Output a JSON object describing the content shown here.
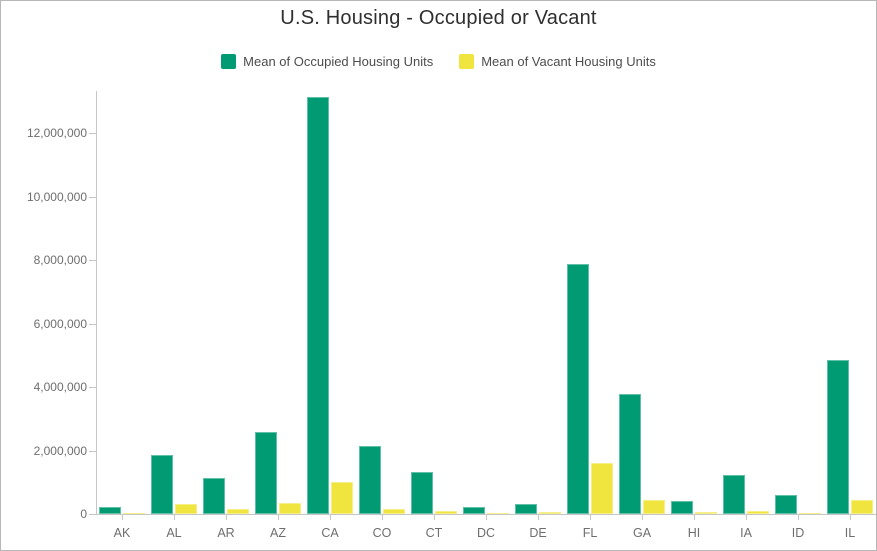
{
  "title": "U.S. Housing - Occupied or Vacant",
  "legend": [
    {
      "label": "Mean of Occupied Housing Units",
      "color": "#009a73"
    },
    {
      "label": "Mean of Vacant Housing Units",
      "color": "#f0e43e"
    }
  ],
  "colors": {
    "occupied": "#009a73",
    "vacant": "#f0e43e",
    "axis": "#c6c6c6",
    "axis_text": "#6e6e6e",
    "title_text": "#2f2f2f",
    "legend_text": "#4d4d4d",
    "border": "#b7b7b7"
  },
  "chart_data": {
    "type": "bar",
    "title": "U.S. Housing - Occupied or Vacant",
    "categories": [
      "AK",
      "AL",
      "AR",
      "AZ",
      "CA",
      "CO",
      "CT",
      "DC",
      "DE",
      "FL",
      "GA",
      "HI",
      "IA",
      "ID",
      "IL"
    ],
    "series": [
      {
        "name": "Mean of Occupied Housing Units",
        "color": "#009a73",
        "values": [
          220000,
          1860000,
          1140000,
          2570000,
          13120000,
          2130000,
          1310000,
          220000,
          310000,
          7880000,
          3770000,
          400000,
          1230000,
          610000,
          4860000
        ]
      },
      {
        "name": "Mean of Vacant Housing Units",
        "color": "#f0e43e",
        "values": [
          40000,
          320000,
          160000,
          340000,
          1020000,
          160000,
          90000,
          20000,
          50000,
          1600000,
          430000,
          50000,
          100000,
          40000,
          430000
        ]
      }
    ],
    "xlabel": "",
    "ylabel": "",
    "ylim": [
      0,
      13300000
    ],
    "yticks": [
      0,
      2000000,
      4000000,
      6000000,
      8000000,
      10000000,
      12000000
    ],
    "y_tick_labels": [
      "0",
      "2,000,000",
      "4,000,000",
      "6,000,000",
      "8,000,000",
      "10,000,000",
      "12,000,000"
    ],
    "grid": false,
    "legend_position": "top"
  }
}
